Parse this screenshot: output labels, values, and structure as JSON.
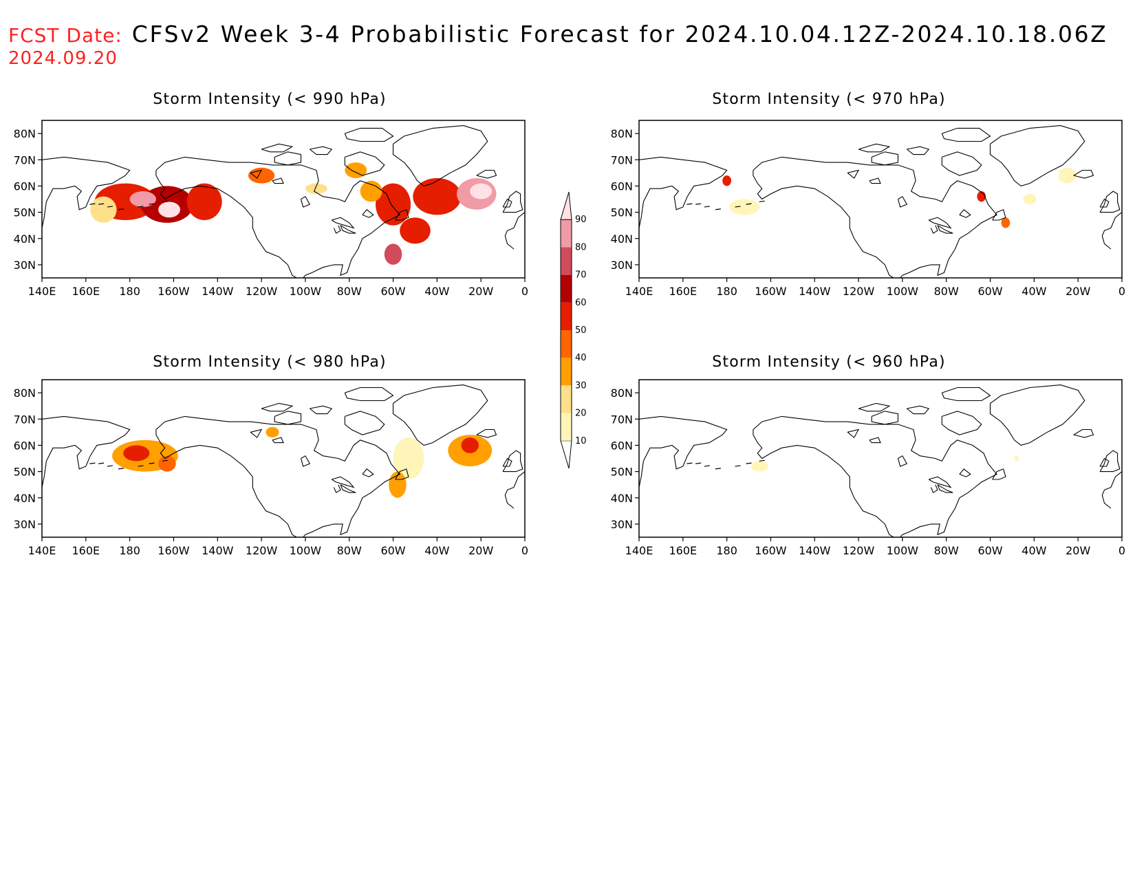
{
  "header": {
    "fcst_label": "FCST Date:",
    "title": "CFSv2 Week 3-4 Probabilistic Forecast for 2024.10.04.12Z-2024.10.18.06Z",
    "fcst_date": "2024.09.20"
  },
  "axes": {
    "lon_labels": [
      "140E",
      "160E",
      "180",
      "160W",
      "140W",
      "120W",
      "100W",
      "80W",
      "60W",
      "40W",
      "20W",
      "0"
    ],
    "lat_labels": [
      "80N",
      "70N",
      "60N",
      "50N",
      "40N",
      "30N"
    ],
    "lon_range": [
      140,
      360
    ],
    "lat_range": [
      25,
      85
    ]
  },
  "colorbar": {
    "levels": [
      "10",
      "20",
      "30",
      "40",
      "50",
      "60",
      "70",
      "80",
      "90"
    ],
    "colors": [
      "#fff5b8",
      "#ffe08a",
      "#ffa000",
      "#ff6400",
      "#e61e00",
      "#b40000",
      "#d24b5a",
      "#f09ba5",
      "#ffe1e6"
    ]
  },
  "panels": [
    {
      "id": "p990",
      "title": "Storm Intensity (< 990 hPa)",
      "blobs": [
        {
          "lon": 178,
          "lat": 54,
          "rlon": 14,
          "rlat": 7,
          "level": 5
        },
        {
          "lon": 197,
          "lat": 53,
          "rlon": 12,
          "rlat": 7,
          "level": 6
        },
        {
          "lon": 214,
          "lat": 54,
          "rlon": 8,
          "rlat": 7,
          "level": 5
        },
        {
          "lon": 186,
          "lat": 55,
          "rlon": 6,
          "rlat": 3,
          "level": 8
        },
        {
          "lon": 198,
          "lat": 51,
          "rlon": 5,
          "rlat": 3,
          "level": 9
        },
        {
          "lon": 168,
          "lat": 51,
          "rlon": 6,
          "rlat": 5,
          "level": 2
        },
        {
          "lon": 240,
          "lat": 64,
          "rlon": 6,
          "rlat": 3,
          "level": 4
        },
        {
          "lon": 265,
          "lat": 59,
          "rlon": 5,
          "rlat": 2,
          "level": 2
        },
        {
          "lon": 283,
          "lat": 66,
          "rlon": 5,
          "rlat": 3,
          "level": 3
        },
        {
          "lon": 300,
          "lat": 53,
          "rlon": 8,
          "rlat": 8,
          "level": 5
        },
        {
          "lon": 320,
          "lat": 56,
          "rlon": 11,
          "rlat": 7,
          "level": 5
        },
        {
          "lon": 338,
          "lat": 57,
          "rlon": 9,
          "rlat": 6,
          "level": 8
        },
        {
          "lon": 340,
          "lat": 58,
          "rlon": 5,
          "rlat": 3,
          "level": 9
        },
        {
          "lon": 310,
          "lat": 43,
          "rlon": 7,
          "rlat": 5,
          "level": 5
        },
        {
          "lon": 300,
          "lat": 34,
          "rlon": 4,
          "rlat": 4,
          "level": 7
        },
        {
          "lon": 290,
          "lat": 58,
          "rlon": 5,
          "rlat": 4,
          "level": 3
        }
      ]
    },
    {
      "id": "p970",
      "title": "Storm Intensity (< 970 hPa)",
      "blobs": [
        {
          "lon": 180,
          "lat": 62,
          "rlon": 2,
          "rlat": 2,
          "level": 5
        },
        {
          "lon": 188,
          "lat": 52,
          "rlon": 7,
          "rlat": 3,
          "level": 1
        },
        {
          "lon": 296,
          "lat": 56,
          "rlon": 2,
          "rlat": 2,
          "level": 5
        },
        {
          "lon": 307,
          "lat": 46,
          "rlon": 2,
          "rlat": 2,
          "level": 4
        },
        {
          "lon": 335,
          "lat": 64,
          "rlon": 4,
          "rlat": 3,
          "level": 1
        },
        {
          "lon": 318,
          "lat": 55,
          "rlon": 3,
          "rlat": 2,
          "level": 1
        }
      ]
    },
    {
      "id": "p980",
      "title": "Storm Intensity (< 980 hPa)",
      "blobs": [
        {
          "lon": 187,
          "lat": 56,
          "rlon": 15,
          "rlat": 6,
          "level": 3
        },
        {
          "lon": 183,
          "lat": 57,
          "rlon": 6,
          "rlat": 3,
          "level": 5
        },
        {
          "lon": 197,
          "lat": 53,
          "rlon": 4,
          "rlat": 3,
          "level": 4
        },
        {
          "lon": 245,
          "lat": 65,
          "rlon": 3,
          "rlat": 2,
          "level": 3
        },
        {
          "lon": 307,
          "lat": 55,
          "rlon": 7,
          "rlat": 8,
          "level": 1
        },
        {
          "lon": 335,
          "lat": 58,
          "rlon": 10,
          "rlat": 6,
          "level": 3
        },
        {
          "lon": 335,
          "lat": 60,
          "rlon": 4,
          "rlat": 3,
          "level": 5
        },
        {
          "lon": 302,
          "lat": 45,
          "rlon": 4,
          "rlat": 5,
          "level": 3
        }
      ]
    },
    {
      "id": "p960",
      "title": "Storm Intensity (< 960 hPa)",
      "blobs": [
        {
          "lon": 195,
          "lat": 52,
          "rlon": 4,
          "rlat": 2,
          "level": 1
        },
        {
          "lon": 312,
          "lat": 55,
          "rlon": 1,
          "rlat": 1,
          "level": 1
        }
      ]
    }
  ]
}
